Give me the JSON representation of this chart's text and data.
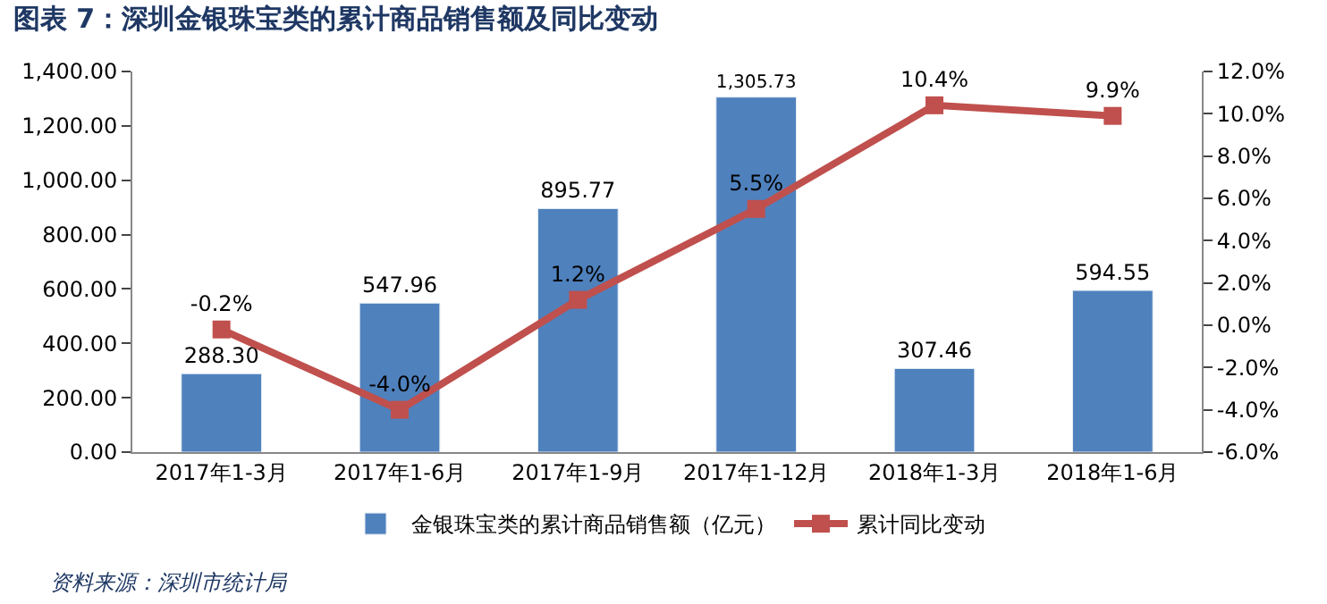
{
  "chart_data": {
    "type": "bar",
    "title": "图表 7：深圳金银珠宝类的累计商品销售额及同比变动",
    "categories": [
      "2017年1-3月",
      "2017年1-6月",
      "2017年1-9月",
      "2017年1-12月",
      "2018年1-3月",
      "2018年1-6月"
    ],
    "series": [
      {
        "name": "金银珠宝类的累计商品销售额（亿元）",
        "color": "#4f81bd",
        "values": [
          288.3,
          547.96,
          895.77,
          1305.73,
          307.46,
          594.55
        ],
        "value_labels": [
          "288.30",
          "547.96",
          "895.77",
          "1,305.73",
          "307.46",
          "594.55"
        ]
      },
      {
        "name": "累计同比变动",
        "type": "line",
        "axis": "y2",
        "color": "#c0504d",
        "marker": "square",
        "values": [
          -0.2,
          -4.0,
          1.2,
          5.5,
          10.4,
          9.9
        ],
        "value_labels": [
          "-0.2%",
          "-4.0%",
          "1.2%",
          "5.5%",
          "10.4%",
          "9.9%"
        ]
      }
    ],
    "ylim": [
      0,
      1400
    ],
    "yticks": [
      {
        "value": 0,
        "label": "0.00"
      },
      {
        "value": 200,
        "label": "200.00"
      },
      {
        "value": 400,
        "label": "400.00"
      },
      {
        "value": 600,
        "label": "600.00"
      },
      {
        "value": 800,
        "label": "800.00"
      },
      {
        "value": 1000,
        "label": "1,000.00"
      },
      {
        "value": 1200,
        "label": "1,200.00"
      },
      {
        "value": 1400,
        "label": "1,400.00"
      }
    ],
    "y2lim": [
      -6,
      12
    ],
    "y2ticks": [
      {
        "value": -6,
        "label": "-6.0%"
      },
      {
        "value": -4,
        "label": "-4.0%"
      },
      {
        "value": -2,
        "label": "-2.0%"
      },
      {
        "value": 0,
        "label": "0.0%"
      },
      {
        "value": 2,
        "label": "2.0%"
      },
      {
        "value": 4,
        "label": "4.0%"
      },
      {
        "value": 6,
        "label": "6.0%"
      },
      {
        "value": 8,
        "label": "8.0%"
      },
      {
        "value": 10,
        "label": "10.0%"
      },
      {
        "value": 12,
        "label": "12.0%"
      }
    ],
    "legend": "bottom",
    "annotations": [
      "资料来源：深圳市统计局"
    ]
  }
}
